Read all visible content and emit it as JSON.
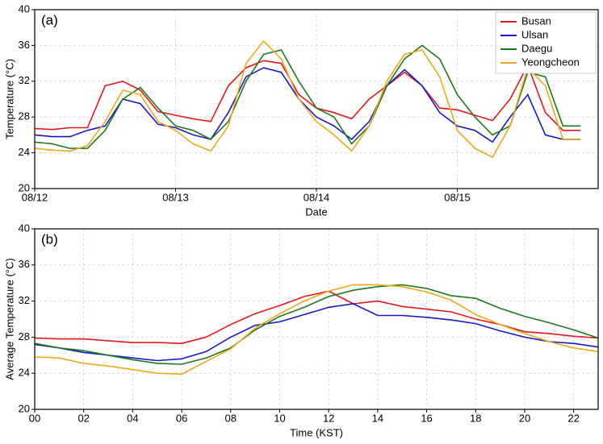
{
  "chart_data": [
    {
      "type": "line",
      "annotation": "(a)",
      "xlabel": "Date",
      "ylabel": "Temperature (°C)",
      "x": [
        0,
        3,
        6,
        9,
        12,
        15,
        18,
        21,
        24,
        27,
        30,
        33,
        36,
        39,
        42,
        45,
        48,
        51,
        54,
        57,
        60,
        63,
        66,
        69,
        72,
        75,
        78,
        81,
        84,
        87,
        90,
        93
      ],
      "xlim": [
        0,
        96
      ],
      "xticks": [
        {
          "value": 0,
          "label": "08/12"
        },
        {
          "value": 24,
          "label": "08/13"
        },
        {
          "value": 48,
          "label": "08/14"
        },
        {
          "value": 72,
          "label": "08/15"
        }
      ],
      "ylim": [
        20,
        40
      ],
      "yticks": [
        20,
        24,
        28,
        32,
        36,
        40
      ],
      "grid": true,
      "legend": "upper right",
      "series": [
        {
          "name": "Busan",
          "color": "#e3171d",
          "values": [
            26.7,
            26.6,
            26.8,
            26.8,
            31.5,
            32,
            31,
            28.6,
            28.2,
            27.8,
            27.5,
            31.5,
            33.5,
            34.3,
            34,
            30.5,
            29,
            28.5,
            27.8,
            30,
            31.5,
            33,
            31.5,
            29,
            28.8,
            28.2,
            27.6,
            30,
            33.8,
            28.5,
            26.5,
            26.5
          ]
        },
        {
          "name": "Ulsan",
          "color": "#1818c8",
          "values": [
            26,
            25.8,
            25.8,
            26.5,
            27,
            30,
            29.5,
            27.2,
            26.8,
            26,
            25.5,
            28.5,
            32.5,
            33.5,
            33,
            30,
            28,
            27,
            25.5,
            27.5,
            31.5,
            33.3,
            31.5,
            28.5,
            27,
            26.5,
            25.2,
            28,
            30.5,
            26,
            25.5,
            25.5
          ]
        },
        {
          "name": "Daegu",
          "color": "#1c7a1c",
          "values": [
            25.2,
            25,
            24.5,
            24.5,
            26.5,
            30,
            31.3,
            29,
            27,
            26.5,
            25.5,
            27.5,
            32,
            35,
            35.5,
            32,
            29,
            28,
            25,
            27,
            31.5,
            34.5,
            36,
            34.5,
            30.5,
            28,
            26,
            27,
            33,
            32.5,
            27,
            27
          ]
        },
        {
          "name": "Yeongcheon",
          "color": "#f0a81a",
          "values": [
            24.5,
            24.3,
            24.2,
            24.8,
            27.5,
            31,
            30.5,
            27.5,
            26.5,
            25,
            24.2,
            27,
            34,
            36.5,
            34.5,
            30,
            27.5,
            26,
            24.2,
            27,
            32,
            35,
            35.5,
            32.5,
            26.5,
            24.5,
            23.5,
            27,
            33.5,
            31.5,
            25.5,
            25.5
          ]
        }
      ]
    },
    {
      "type": "line",
      "annotation": "(b)",
      "xlabel": "Time (KST)",
      "ylabel": "Average Temperature (°C)",
      "x": [
        0,
        1,
        2,
        3,
        4,
        5,
        6,
        7,
        8,
        9,
        10,
        11,
        12,
        13,
        14,
        15,
        16,
        17,
        18,
        19,
        20,
        21,
        22,
        23
      ],
      "xlim": [
        0,
        23
      ],
      "xticks": [
        {
          "value": 0,
          "label": "00"
        },
        {
          "value": 2,
          "label": "02"
        },
        {
          "value": 4,
          "label": "04"
        },
        {
          "value": 6,
          "label": "06"
        },
        {
          "value": 8,
          "label": "08"
        },
        10,
        12,
        14,
        16,
        18,
        20,
        22
      ],
      "ylim": [
        20,
        40
      ],
      "yticks": [
        20,
        24,
        28,
        32,
        36,
        40
      ],
      "grid": true,
      "series": [
        {
          "color": "#e3171d",
          "values": [
            27.9,
            27.8,
            27.8,
            27.6,
            27.4,
            27.4,
            27.3,
            28,
            29.4,
            30.6,
            31.5,
            32.5,
            33.1,
            31.7,
            32,
            31.4,
            31.1,
            30.8,
            30,
            29.4,
            28.6,
            28.4,
            28.1,
            27.9
          ]
        },
        {
          "color": "#1818c8",
          "values": [
            27.2,
            26.8,
            26.3,
            26,
            25.7,
            25.4,
            25.6,
            26.4,
            28,
            29.3,
            29.7,
            30.5,
            31.3,
            31.7,
            30.4,
            30.4,
            30.2,
            29.9,
            29.5,
            28.7,
            28,
            27.5,
            27.3,
            26.9
          ]
        },
        {
          "color": "#1c7a1c",
          "values": [
            27.3,
            26.8,
            26.5,
            26,
            25.5,
            25.1,
            25,
            25.7,
            26.8,
            28.8,
            30.3,
            31.3,
            32.5,
            33.2,
            33.6,
            33.8,
            33.4,
            32.6,
            32.3,
            31.2,
            30.3,
            29.6,
            28.8,
            27.9
          ]
        },
        {
          "color": "#f0a81a",
          "values": [
            25.8,
            25.7,
            25.1,
            24.8,
            24.4,
            24,
            23.9,
            25.3,
            26.7,
            29,
            30.6,
            32,
            33.1,
            33.8,
            33.8,
            33.6,
            33,
            32.1,
            30.5,
            29.4,
            28.4,
            27.5,
            26.8,
            26.4
          ]
        }
      ]
    }
  ]
}
